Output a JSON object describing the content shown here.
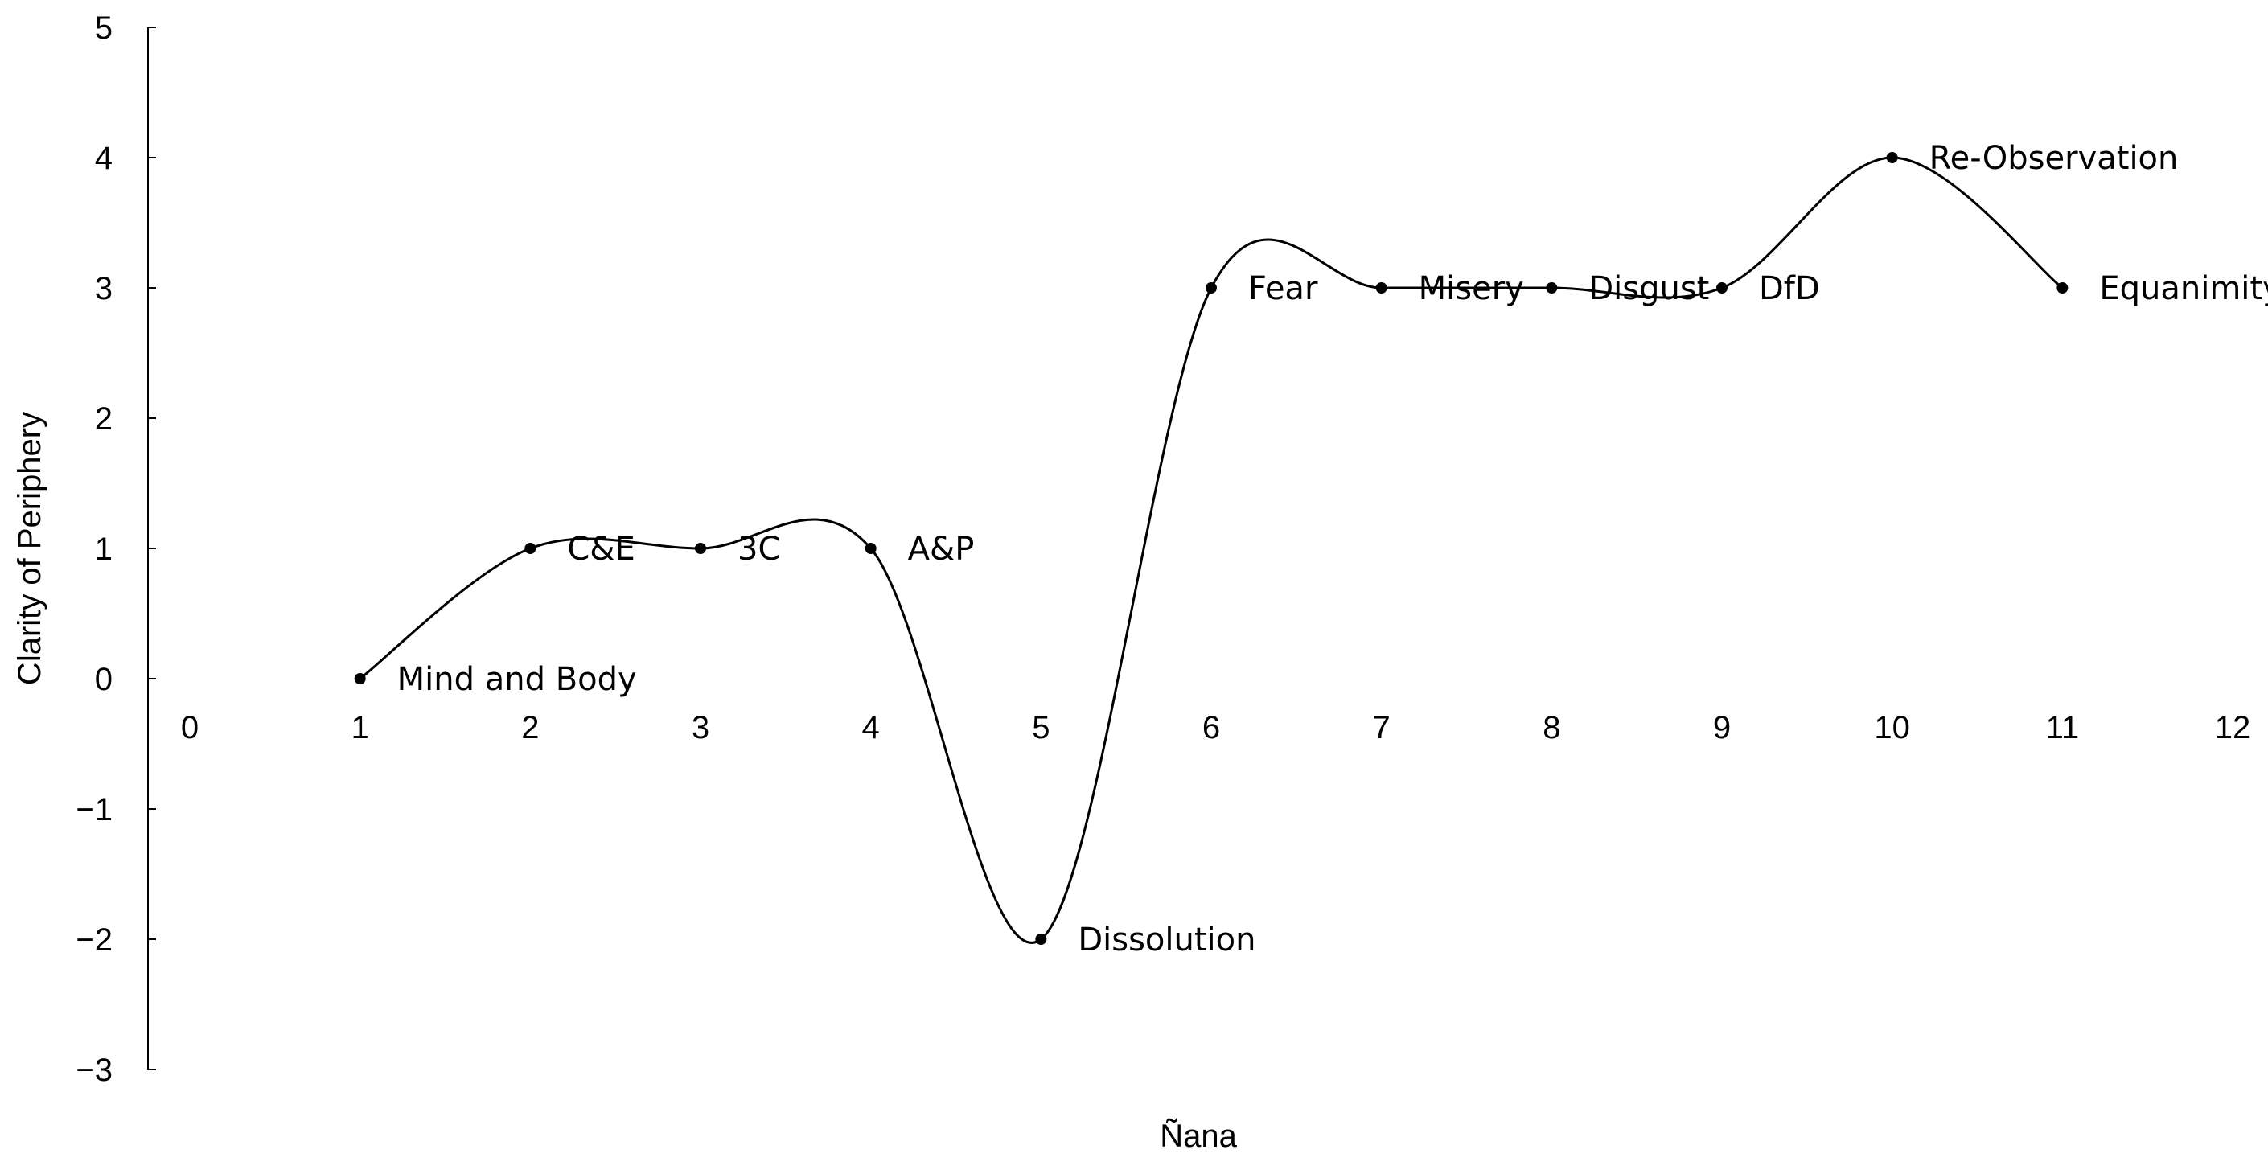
{
  "chart_data": {
    "type": "line",
    "title": "",
    "xlabel": "Ñana",
    "ylabel": "Clarity of Periphery",
    "xlim": [
      0,
      12
    ],
    "ylim": [
      -3,
      5
    ],
    "x_ticks": [
      "0",
      "1",
      "2",
      "3",
      "4",
      "5",
      "6",
      "7",
      "8",
      "9",
      "10",
      "11",
      "12"
    ],
    "y_ticks": [
      "−3",
      "−2",
      "−1",
      "0",
      "1",
      "2",
      "3",
      "4",
      "5"
    ],
    "grid": false,
    "smooth": true,
    "points": [
      {
        "x": 1,
        "y": 0,
        "label": "Mind and Body"
      },
      {
        "x": 2,
        "y": 1,
        "label": "C&E"
      },
      {
        "x": 3,
        "y": 1,
        "label": "3C"
      },
      {
        "x": 4,
        "y": 1,
        "label": "A&P"
      },
      {
        "x": 5,
        "y": -2,
        "label": "Dissolution"
      },
      {
        "x": 6,
        "y": 3,
        "label": "Fear"
      },
      {
        "x": 7,
        "y": 3,
        "label": "Misery"
      },
      {
        "x": 8,
        "y": 3,
        "label": "Disgust"
      },
      {
        "x": 9,
        "y": 3,
        "label": "DfD"
      },
      {
        "x": 10,
        "y": 4,
        "label": "Re-Observation"
      },
      {
        "x": 11,
        "y": 3,
        "label": "Equanimity"
      }
    ]
  }
}
